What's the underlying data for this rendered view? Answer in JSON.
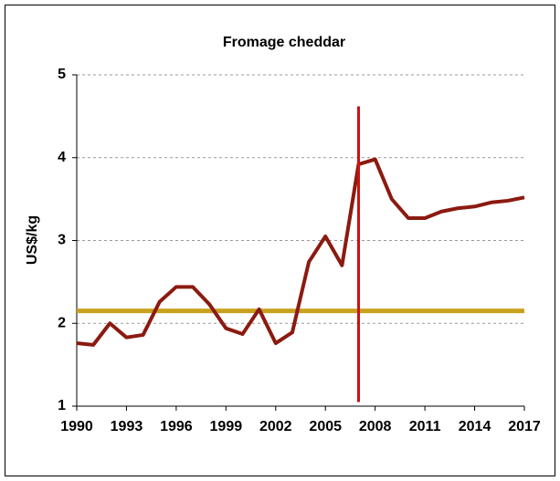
{
  "chart_data": {
    "type": "line",
    "title": "Fromage cheddar",
    "y_label": "US$/kg",
    "x": [
      1990,
      1991,
      1992,
      1993,
      1994,
      1995,
      1996,
      1997,
      1998,
      1999,
      2000,
      2001,
      2002,
      2003,
      2004,
      2005,
      2006,
      2007,
      2008,
      2009,
      2010,
      2011,
      2012,
      2013,
      2014,
      2015,
      2016,
      2017
    ],
    "series": [
      {
        "color": "#8b1a10",
        "values": [
          1.76,
          1.74,
          2.0,
          1.83,
          1.86,
          2.26,
          2.44,
          2.44,
          2.23,
          1.94,
          1.87,
          2.17,
          1.76,
          1.89,
          2.74,
          3.05,
          2.7,
          3.92,
          3.98,
          3.5,
          3.27,
          3.27,
          3.35,
          3.39,
          3.41,
          3.46,
          3.48,
          3.52
        ]
      }
    ],
    "hline": {
      "value": 2.15,
      "color": "#c8a21e"
    },
    "vline": {
      "x": 2007,
      "ylim": [
        1.05,
        4.62
      ],
      "color": "#cc1010"
    },
    "xlim": [
      1990,
      2017
    ],
    "xticks": [
      1990,
      1993,
      1996,
      1999,
      2002,
      2005,
      2008,
      2011,
      2014,
      2017
    ],
    "ylim": [
      1,
      5
    ],
    "yticks": [
      1,
      2,
      3,
      4,
      5
    ],
    "grid": true
  }
}
